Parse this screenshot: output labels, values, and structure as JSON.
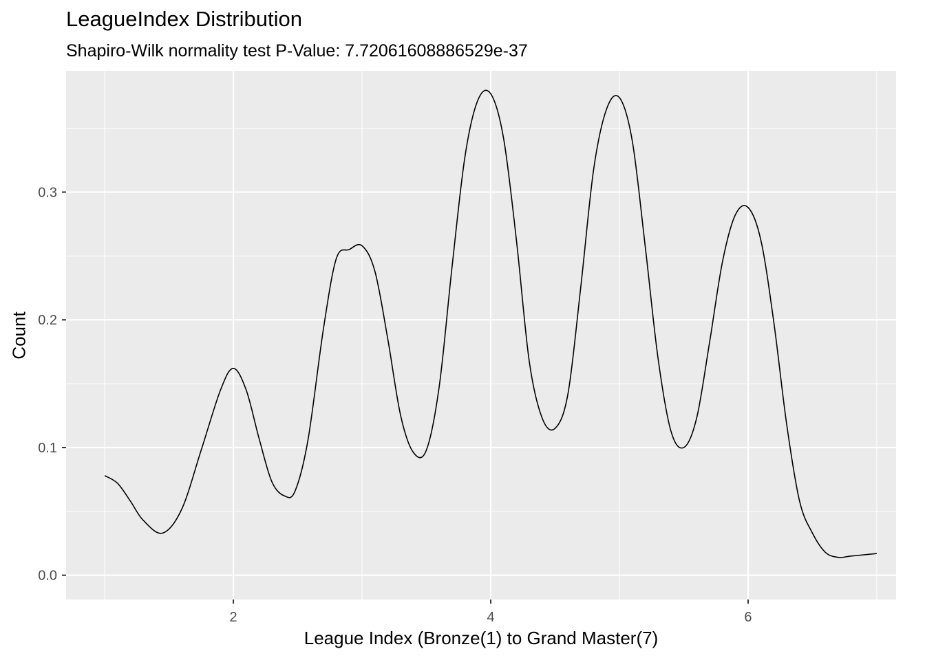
{
  "chart_data": {
    "type": "line",
    "title": "LeagueIndex Distribution",
    "subtitle": "Shapiro-Wilk normality test  P-Value:  7.72061608886529e-37",
    "xlabel": "League Index (Bronze(1) to Grand Master(7)",
    "ylabel": "Count",
    "xlim": [
      0.7,
      7.15
    ],
    "ylim": [
      -0.019,
      0.395
    ],
    "x_ticks": [
      2,
      4,
      6
    ],
    "x_tick_labels": [
      "2",
      "4",
      "6"
    ],
    "y_ticks": [
      0.0,
      0.1,
      0.2,
      0.3
    ],
    "y_tick_labels": [
      "0.0",
      "0.1",
      "0.2",
      "0.3"
    ],
    "grid": true,
    "series": [
      {
        "x": [
          1.0,
          1.1,
          1.2,
          1.3,
          1.45,
          1.6,
          1.75,
          1.9,
          2.0,
          2.1,
          2.2,
          2.3,
          2.4,
          2.48,
          2.58,
          2.7,
          2.8,
          2.9,
          3.0,
          3.1,
          3.2,
          3.3,
          3.4,
          3.5,
          3.6,
          3.7,
          3.8,
          3.9,
          4.0,
          4.1,
          4.2,
          4.3,
          4.4,
          4.5,
          4.6,
          4.7,
          4.8,
          4.9,
          5.0,
          5.1,
          5.2,
          5.3,
          5.4,
          5.5,
          5.6,
          5.7,
          5.8,
          5.9,
          6.0,
          6.1,
          6.2,
          6.3,
          6.4,
          6.5,
          6.6,
          6.7,
          6.8,
          7.0
        ],
        "y": [
          0.078,
          0.072,
          0.058,
          0.043,
          0.033,
          0.052,
          0.098,
          0.145,
          0.162,
          0.145,
          0.107,
          0.073,
          0.062,
          0.066,
          0.106,
          0.193,
          0.248,
          0.255,
          0.258,
          0.238,
          0.185,
          0.125,
          0.096,
          0.098,
          0.148,
          0.242,
          0.328,
          0.372,
          0.377,
          0.342,
          0.262,
          0.167,
          0.123,
          0.115,
          0.142,
          0.226,
          0.318,
          0.365,
          0.374,
          0.34,
          0.258,
          0.17,
          0.113,
          0.1,
          0.123,
          0.182,
          0.245,
          0.282,
          0.288,
          0.262,
          0.198,
          0.118,
          0.058,
          0.033,
          0.018,
          0.014,
          0.015,
          0.017
        ]
      }
    ]
  }
}
